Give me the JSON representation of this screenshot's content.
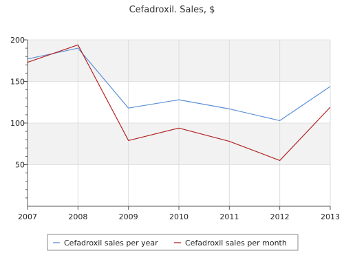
{
  "chart_data": {
    "type": "line",
    "title": "Cefadroxil. Sales, $",
    "xlabel": "",
    "ylabel": "",
    "x": [
      "2007",
      "2008",
      "2009",
      "2010",
      "2011",
      "2012",
      "2013"
    ],
    "ylim": [
      0,
      200
    ],
    "yticks": [
      50,
      100,
      150,
      200
    ],
    "grid": true,
    "band_colors": [
      "#f2f2f2",
      "#ffffff"
    ],
    "legend_position": "bottom",
    "series": [
      {
        "name": "Cefadroxil sales per year",
        "color": "#5b8fd6",
        "values": [
          177,
          190,
          118,
          128,
          117,
          103,
          144
        ]
      },
      {
        "name": "Cefadroxil sales per month",
        "color": "#b22222",
        "values": [
          173,
          194,
          79,
          94,
          78,
          55,
          119
        ]
      }
    ]
  }
}
